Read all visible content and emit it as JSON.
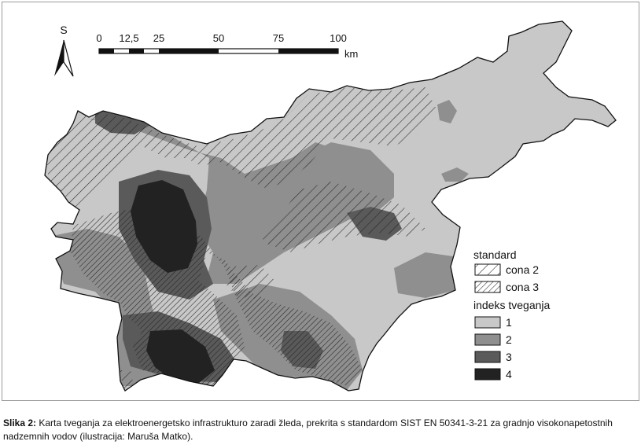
{
  "north_arrow": {
    "letter": "S"
  },
  "scale_bar": {
    "ticks": [
      "0",
      "12,5",
      "25",
      "50",
      "75",
      "100"
    ],
    "unit": "km"
  },
  "legend": {
    "standard_title": "standard",
    "standard_items": [
      {
        "label": "cona 2",
        "pattern": "sparse-hatch"
      },
      {
        "label": "cona 3",
        "pattern": "dense-hatch"
      }
    ],
    "risk_title": "indeks tveganja",
    "risk_items": [
      {
        "label": "1",
        "color": "#c8c8c8"
      },
      {
        "label": "2",
        "color": "#8f8f8f"
      },
      {
        "label": "3",
        "color": "#5a5a5a"
      },
      {
        "label": "4",
        "color": "#222222"
      }
    ]
  },
  "caption": {
    "label": "Slika 2:",
    "text": "Karta tveganja za elektroenergetsko infrastrukturo zaradi žleda, prekrita s standardom SIST EN 50341-3-21 za gradnjo visokonapetostnih nadzemnih vodov (ilustracija: Maruša Matko)."
  }
}
